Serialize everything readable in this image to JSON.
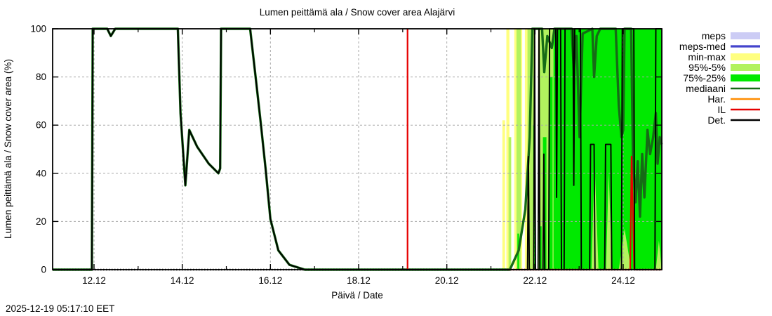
{
  "title": "Lumen peittämä ala / Snow cover area Alajärvi",
  "timestamp": "2025-12-19 05:17:10 EET",
  "colors": {
    "meps": "#ccccf5",
    "meps_med": "#4444cc",
    "minmax": "#ffff7f",
    "p95": "#b2f25e",
    "p75": "#00e900",
    "mediaani": "#166b16",
    "har": "#ff8c00",
    "il": "#e60000",
    "det": "#000000",
    "grid": "#a8a8a8",
    "axis": "#000000"
  },
  "legend": {
    "items": [
      {
        "label": "meps",
        "type": "band",
        "color": "meps"
      },
      {
        "label": "meps-med",
        "type": "line",
        "color": "meps_med"
      },
      {
        "label": "min-max",
        "type": "band",
        "color": "minmax"
      },
      {
        "label": "95%-5%",
        "type": "band",
        "color": "p95"
      },
      {
        "label": "75%-25%",
        "type": "band",
        "color": "p75"
      },
      {
        "label": "mediaani",
        "type": "line",
        "color": "mediaani"
      },
      {
        "label": "Har.",
        "type": "line",
        "color": "har"
      },
      {
        "label": "IL",
        "type": "line",
        "color": "il"
      },
      {
        "label": "Det.",
        "type": "line",
        "color": "det"
      }
    ]
  },
  "chart_data": {
    "type": "line",
    "title": "Lumen peittämä ala / Snow cover area Alajärvi",
    "xlabel": "Päivä / Date",
    "ylabel": "Lumen peittämä ala / Snow cover area (%)",
    "xlim": [
      11.18,
      24.99
    ],
    "ylim": [
      0,
      100
    ],
    "grid": true,
    "legend_position": "outside-right",
    "xticks": [
      {
        "u": 12.12,
        "label": "12.12"
      },
      {
        "u": 14.12,
        "label": "14.12"
      },
      {
        "u": 16.12,
        "label": "16.12"
      },
      {
        "u": 18.12,
        "label": "18.12"
      },
      {
        "u": 20.12,
        "label": "20.12"
      },
      {
        "u": 22.12,
        "label": "22.12"
      },
      {
        "u": 24.12,
        "label": "24.12"
      }
    ],
    "xminor": [
      13.12,
      15.12,
      17.12,
      19.12,
      21.12,
      23.12
    ],
    "yticks": [
      0,
      20,
      40,
      60,
      80,
      100
    ],
    "bands": [
      {
        "name": "min-max",
        "color": "minmax",
        "strips": [
          {
            "x0": 21.38,
            "x1": 21.44,
            "top": 62
          },
          {
            "x0": 21.47,
            "x1": 21.54,
            "top": 100
          },
          {
            "x0": 21.65,
            "x1": 21.83,
            "top": 100
          },
          {
            "x0": 21.89,
            "x1": 22.13,
            "top": 100
          },
          {
            "x0": 22.19,
            "x1": 24.99,
            "top": 100
          }
        ]
      },
      {
        "name": "95%-5%",
        "color": "p95",
        "strips": [
          {
            "x0": 21.52,
            "x1": 21.58,
            "top": 55
          },
          {
            "x0": 21.7,
            "x1": 21.8,
            "top": 100
          },
          {
            "x0": 21.95,
            "x1": 22.13,
            "top": 100
          },
          {
            "x0": 22.19,
            "x1": 24.99,
            "top": 100
          }
        ]
      },
      {
        "name": "75%-25%",
        "color": "p75",
        "strips": [
          {
            "x0": 21.72,
            "x1": 21.76,
            "top": 15
          },
          {
            "x0": 22.08,
            "x1": 22.12,
            "top": 60
          },
          {
            "x0": 22.21,
            "x1": 22.27,
            "top": 18
          },
          {
            "x0": 22.3,
            "x1": 22.38,
            "top": 55
          },
          {
            "x0": 22.44,
            "x1": 22.52,
            "top": 80
          },
          {
            "x0": 22.54,
            "x1": 24.99,
            "top": 100
          }
        ]
      }
    ],
    "mounds": [
      {
        "color": "p95",
        "x": [
          23.4,
          23.47,
          23.56
        ],
        "h": 45
      },
      {
        "color": "p95",
        "x": [
          23.73,
          23.79,
          23.87
        ],
        "h": 40
      },
      {
        "color": "p95",
        "x": [
          24.02,
          24.15,
          24.3
        ],
        "h": 17
      },
      {
        "color": "p95",
        "x": [
          24.86,
          24.93,
          24.99
        ],
        "h": 12
      }
    ],
    "series": [
      {
        "name": "mediaani",
        "color": "mediaani",
        "width": 3.4,
        "points": [
          [
            11.18,
            0
          ],
          [
            12.07,
            0
          ],
          [
            12.09,
            100
          ],
          [
            12.42,
            100
          ],
          [
            12.5,
            97
          ],
          [
            12.6,
            100
          ],
          [
            14.02,
            100
          ],
          [
            14.08,
            65
          ],
          [
            14.19,
            35
          ],
          [
            14.28,
            58
          ],
          [
            14.46,
            51
          ],
          [
            14.72,
            44
          ],
          [
            14.94,
            40
          ],
          [
            14.98,
            42
          ],
          [
            15.0,
            100
          ],
          [
            15.66,
            100
          ],
          [
            15.79,
            79
          ],
          [
            15.9,
            61
          ],
          [
            16.01,
            42
          ],
          [
            16.12,
            21
          ],
          [
            16.3,
            8
          ],
          [
            16.55,
            2
          ],
          [
            16.9,
            0
          ],
          [
            21.3,
            0
          ],
          [
            21.55,
            0
          ],
          [
            21.75,
            8
          ],
          [
            21.9,
            25
          ],
          [
            22.0,
            55
          ],
          [
            22.06,
            100
          ],
          [
            22.28,
            100
          ],
          [
            22.33,
            82
          ],
          [
            22.4,
            97
          ],
          [
            22.5,
            92
          ],
          [
            22.56,
            100
          ],
          [
            22.95,
            100
          ],
          [
            23.0,
            83
          ],
          [
            23.06,
            97
          ],
          [
            23.13,
            55
          ],
          [
            23.2,
            98
          ],
          [
            23.42,
            100
          ],
          [
            23.46,
            80
          ],
          [
            23.52,
            97
          ],
          [
            23.6,
            100
          ],
          [
            23.95,
            100
          ],
          [
            24.02,
            68
          ],
          [
            24.08,
            55
          ],
          [
            24.12,
            58
          ],
          [
            24.15,
            100
          ],
          [
            24.3,
            100
          ],
          [
            24.34,
            48
          ],
          [
            24.4,
            28
          ],
          [
            24.45,
            45
          ],
          [
            24.5,
            22
          ],
          [
            24.55,
            48
          ],
          [
            24.6,
            30
          ],
          [
            24.67,
            58
          ],
          [
            24.73,
            48
          ],
          [
            24.8,
            55
          ],
          [
            24.86,
            65
          ],
          [
            24.9,
            44
          ],
          [
            24.95,
            55
          ],
          [
            24.99,
            52
          ]
        ]
      },
      {
        "name": "IL",
        "color": "il",
        "width": 2.2,
        "points": [
          [
            19.23,
            0
          ],
          [
            19.23,
            100
          ]
        ]
      },
      {
        "name": "IL-forecast",
        "color": "il",
        "width": 2.2,
        "points": [
          [
            21.5,
            0
          ],
          [
            24.28,
            0
          ],
          [
            24.31,
            47
          ],
          [
            24.34,
            25
          ],
          [
            24.37,
            0
          ],
          [
            24.99,
            0
          ]
        ]
      },
      {
        "name": "Det",
        "color": "det",
        "width": 1.9,
        "points": [
          [
            11.18,
            0
          ],
          [
            12.07,
            0
          ],
          [
            12.09,
            100
          ],
          [
            12.42,
            100
          ],
          [
            12.5,
            97
          ],
          [
            12.6,
            100
          ],
          [
            14.02,
            100
          ],
          [
            14.08,
            65
          ],
          [
            14.19,
            35
          ],
          [
            14.28,
            58
          ],
          [
            14.46,
            51
          ],
          [
            14.72,
            44
          ],
          [
            14.94,
            40
          ],
          [
            14.98,
            42
          ],
          [
            15.0,
            100
          ],
          [
            15.66,
            100
          ],
          [
            15.79,
            79
          ],
          [
            15.9,
            61
          ],
          [
            16.01,
            42
          ],
          [
            16.12,
            21
          ],
          [
            16.3,
            8
          ],
          [
            16.55,
            2
          ],
          [
            16.9,
            0
          ],
          [
            21.3,
            0
          ],
          [
            21.95,
            0
          ],
          [
            21.97,
            47
          ],
          [
            21.99,
            0
          ],
          [
            22.09,
            0
          ],
          [
            22.11,
            100
          ],
          [
            22.13,
            0
          ],
          [
            22.19,
            0
          ],
          [
            22.21,
            100
          ],
          [
            22.23,
            0
          ],
          [
            22.3,
            0
          ],
          [
            22.32,
            48
          ],
          [
            22.34,
            0
          ],
          [
            22.43,
            0
          ],
          [
            22.45,
            100
          ],
          [
            22.59,
            100
          ],
          [
            22.61,
            30
          ],
          [
            22.63,
            100
          ],
          [
            22.7,
            100
          ],
          [
            22.72,
            0
          ],
          [
            22.78,
            0
          ],
          [
            22.8,
            100
          ],
          [
            22.98,
            100
          ],
          [
            23.0,
            35
          ],
          [
            23.02,
            100
          ],
          [
            23.15,
            100
          ],
          [
            23.17,
            0
          ],
          [
            23.36,
            0
          ],
          [
            23.38,
            52
          ],
          [
            23.46,
            52
          ],
          [
            23.48,
            0
          ],
          [
            23.7,
            0
          ],
          [
            23.72,
            52
          ],
          [
            23.84,
            52
          ],
          [
            23.86,
            0
          ],
          [
            24.08,
            0
          ],
          [
            24.1,
            100
          ],
          [
            24.36,
            100
          ],
          [
            24.38,
            0
          ],
          [
            24.84,
            0
          ],
          [
            24.86,
            100
          ],
          [
            24.99,
            100
          ]
        ]
      }
    ]
  }
}
